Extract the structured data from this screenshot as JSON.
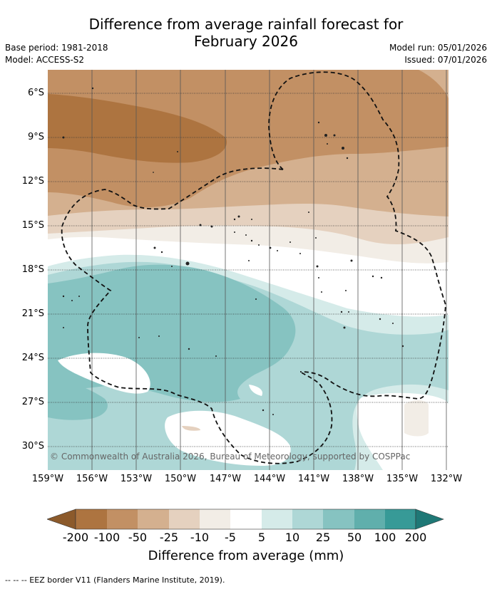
{
  "title_line1": "Difference from average rainfall forecast for",
  "title_line2": "February 2026",
  "base_period": "Base period: 1981-2018",
  "model": "Model: ACCESS-S2",
  "model_run": "Model run: 05/01/2026",
  "issued": "Issued: 07/01/2026",
  "lat_labels": [
    "6°S",
    "9°S",
    "12°S",
    "15°S",
    "18°S",
    "21°S",
    "24°S",
    "27°S",
    "30°S"
  ],
  "lon_labels": [
    "159°W",
    "156°W",
    "153°W",
    "150°W",
    "147°W",
    "144°W",
    "141°W",
    "138°W",
    "135°W",
    "132°W"
  ],
  "credit": "© Commonwealth of Australia 2026, Bureau of Meteorology, supported by COSPPac",
  "colorbar": {
    "ticks": [
      "-200",
      "-100",
      "-50",
      "-25",
      "-10",
      "-5",
      "5",
      "10",
      "25",
      "50",
      "100",
      "200"
    ],
    "colors": [
      "#8c5a2b",
      "#ad7440",
      "#c29064",
      "#d4b08f",
      "#e5d1bf",
      "#f2ede6",
      "#ffffff",
      "#d5ebe9",
      "#aed7d6",
      "#86c3c1",
      "#60afac",
      "#379a97",
      "#1f7876"
    ],
    "label": "Difference from average (mm)"
  },
  "legend_note": "-- -- -- EEZ border V11 (Flanders Marine Institute, 2019)."
}
